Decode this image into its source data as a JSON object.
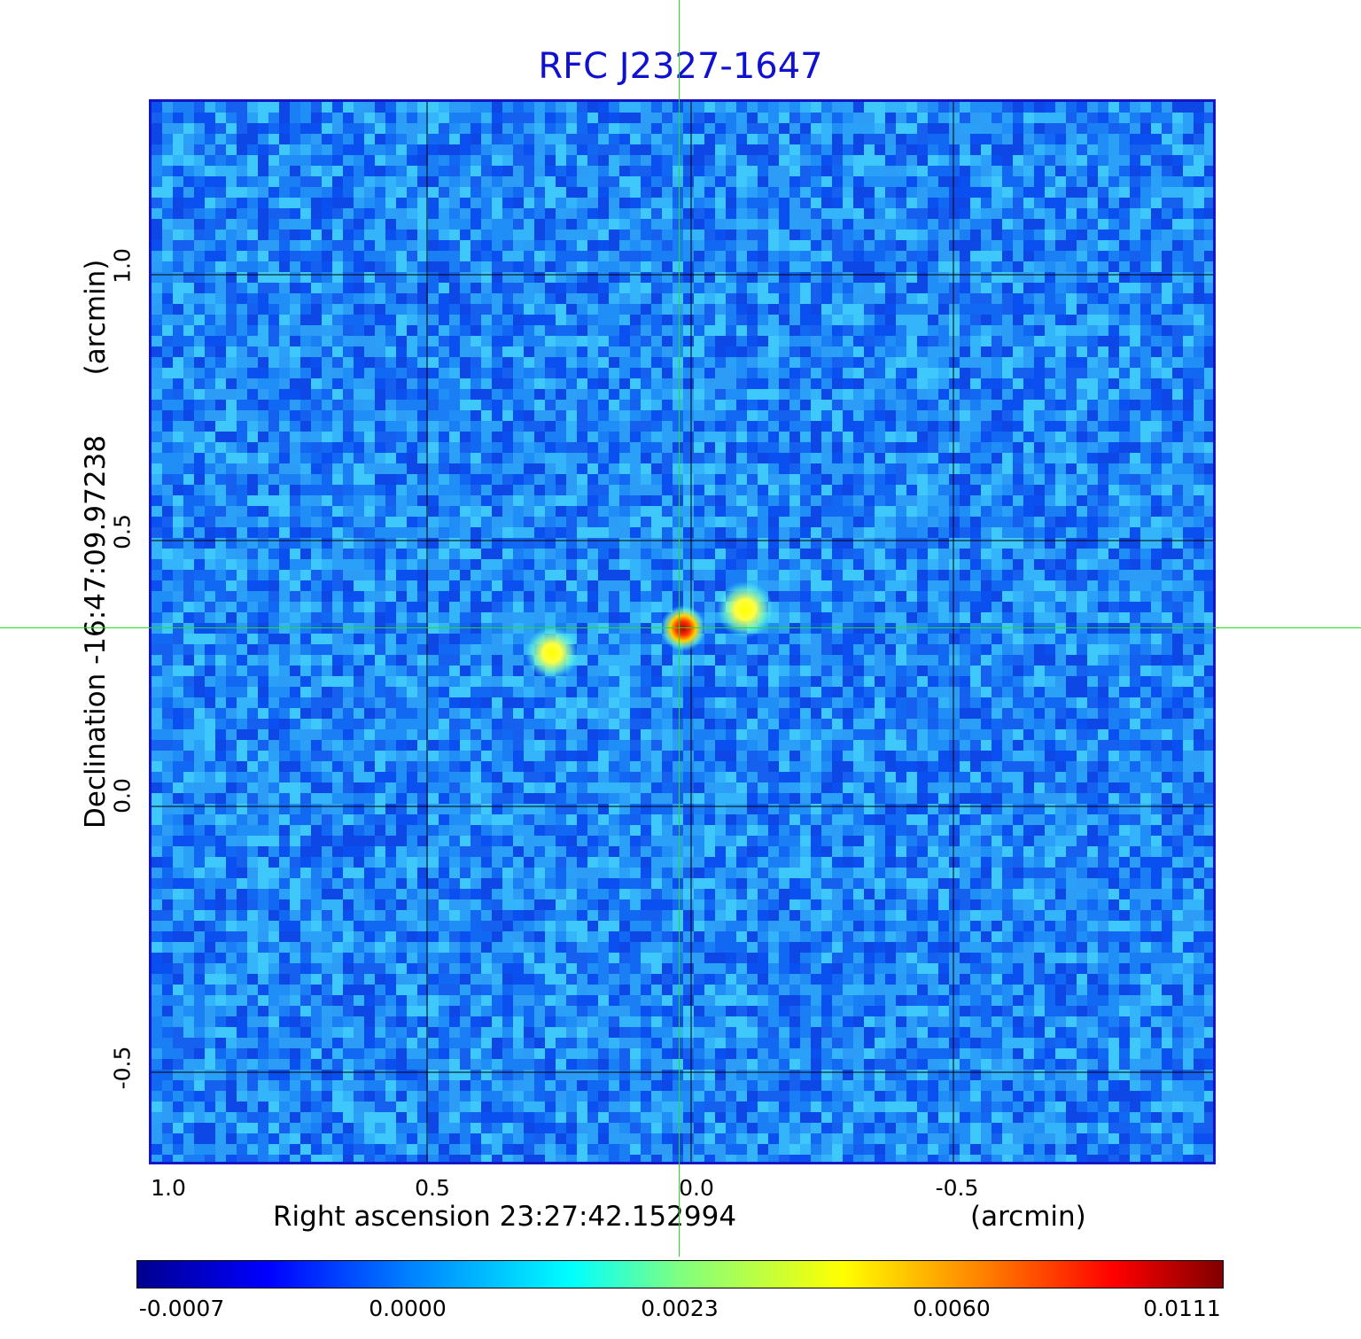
{
  "title": "RFC J2327-1647",
  "x_axis": {
    "label": "Right ascension  23:27:42.152994",
    "unit": "(arcmin)",
    "ticks": [
      "1.0",
      "0.5",
      "0.0",
      "-0.5"
    ]
  },
  "y_axis": {
    "label": "Declination  -16:47:09.97238",
    "unit": "(arcmin)",
    "ticks": [
      "1.0",
      "0.5",
      "0.0",
      "-0.5"
    ]
  },
  "colorbar": {
    "ticks": [
      "-0.0007",
      "0.0000",
      "0.0023",
      "0.0060",
      "0.0111"
    ]
  },
  "colors": {
    "title": "#1010d0",
    "frame": "#1515c8",
    "crosshair": "#22dd22",
    "grid": "#000000"
  }
}
